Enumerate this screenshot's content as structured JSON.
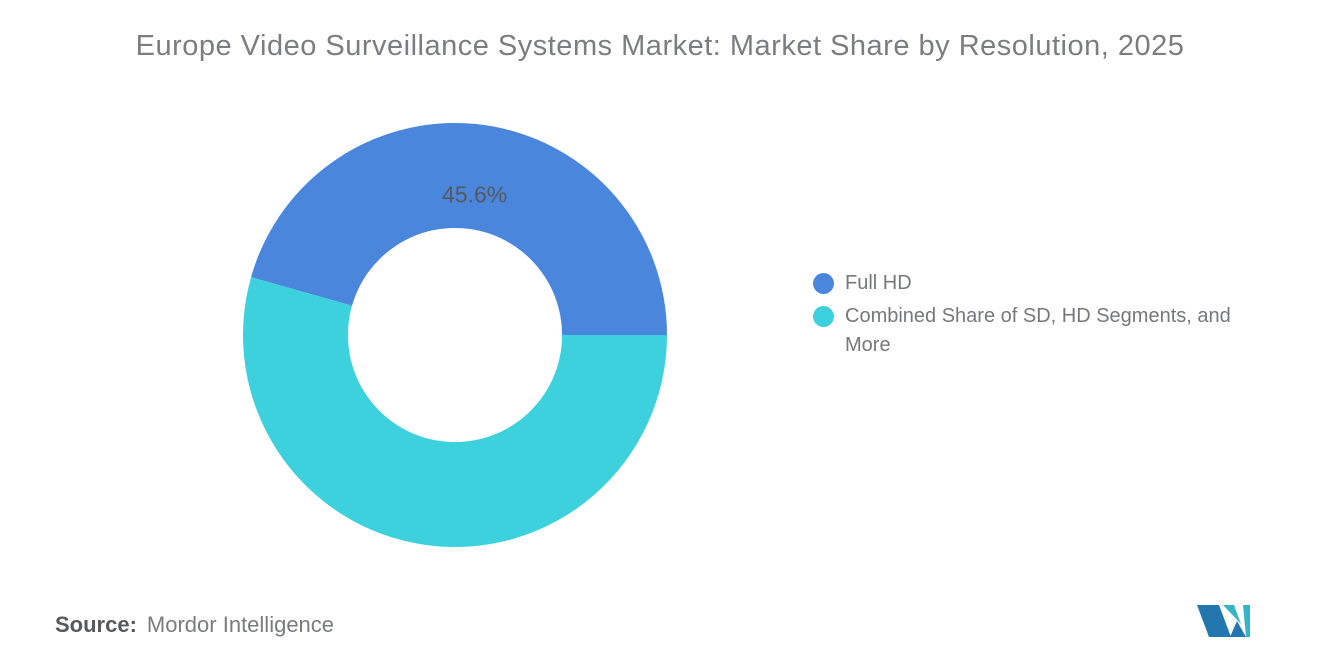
{
  "title": "Europe Video Surveillance Systems Market: Market Share by Resolution, 2025",
  "chart_data": {
    "type": "pie",
    "title": "Europe Video Surveillance Systems Market: Market Share by Resolution, 2025",
    "donut": true,
    "inner_radius_ratio": 0.505,
    "start_angle_deg": 164.16,
    "legend_position": "right",
    "slices": [
      {
        "label": "Full HD",
        "value": 45.6,
        "data_label": "45.6%",
        "color": "#4a87dc"
      },
      {
        "label": "Combined Share of SD, HD Segments, and More",
        "value": 54.4,
        "data_label": "",
        "color": "#3dd1dd"
      }
    ]
  },
  "source": {
    "label": "Source:",
    "value": "Mordor Intelligence"
  },
  "logo": {
    "name": "mordor-intelligence-logo",
    "colors": {
      "blue": "#2377ae",
      "teal": "#35b5c6"
    }
  }
}
